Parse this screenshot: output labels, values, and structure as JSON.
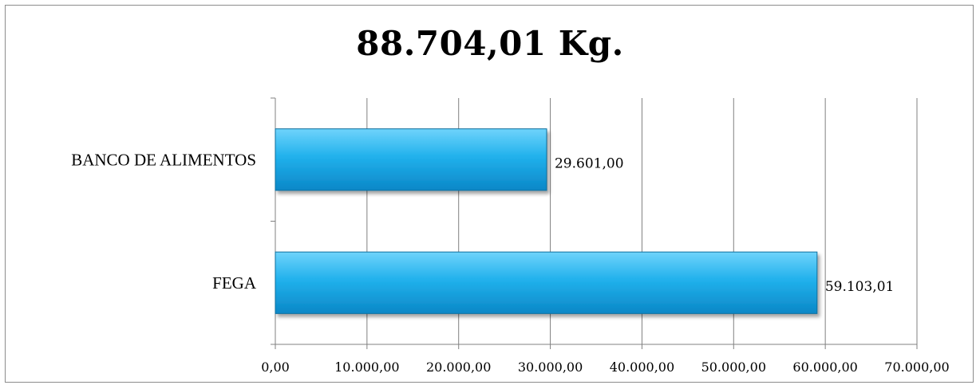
{
  "chart_data": {
    "type": "bar",
    "orientation": "horizontal",
    "title": "88.704,01 Kg.",
    "categories": [
      "BANCO DE ALIMENTOS",
      "FEGA"
    ],
    "values": [
      29601.0,
      59103.01
    ],
    "data_labels": [
      "29.601,00",
      "59.103,01"
    ],
    "xlim": [
      0,
      70000
    ],
    "x_ticks": [
      0,
      10000,
      20000,
      30000,
      40000,
      50000,
      60000,
      70000
    ],
    "x_tick_labels": [
      "0,00",
      "10.000,00",
      "20.000,00",
      "30.000,00",
      "40.000,00",
      "50.000,00",
      "60.000,00",
      "70.000,00"
    ],
    "grid": true,
    "legend": "none",
    "bar_color": "#18a9e8",
    "bar_edge_color": "#0f6f9e"
  }
}
